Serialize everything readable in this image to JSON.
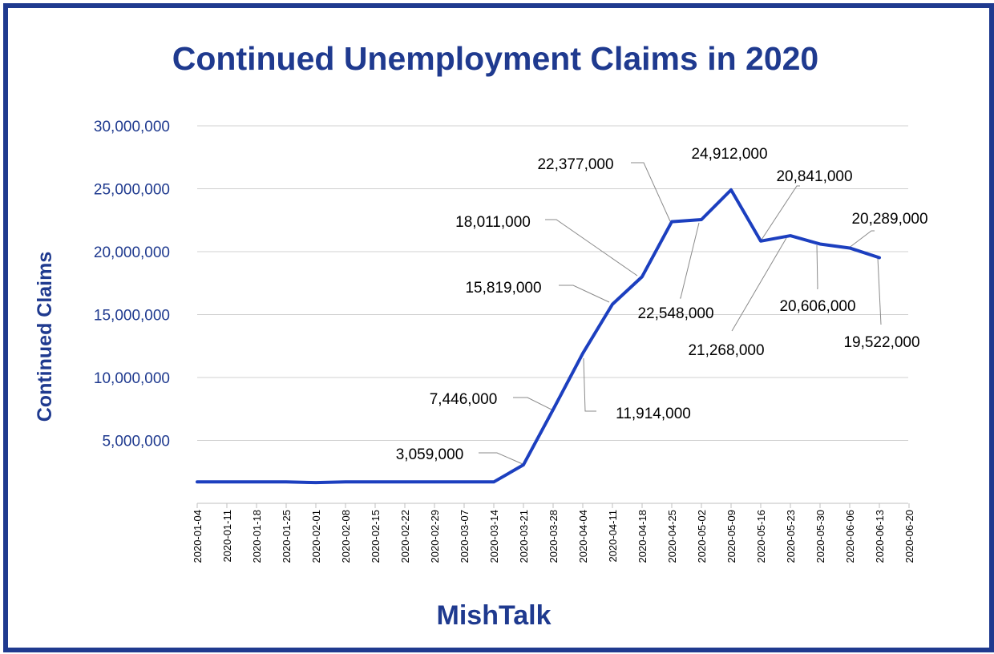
{
  "chart_data": {
    "type": "line",
    "title": "Continued Unemployment Claims in 2020",
    "xlabel": "MishTalk",
    "ylabel": "Continued  Claims",
    "ylim": [
      0,
      30000000
    ],
    "yticks": [
      {
        "value": 5000000,
        "label": "5,000,000"
      },
      {
        "value": 10000000,
        "label": "10,000,000"
      },
      {
        "value": 15000000,
        "label": "15,000,000"
      },
      {
        "value": 20000000,
        "label": "20,000,000"
      },
      {
        "value": 25000000,
        "label": "25,000,000"
      },
      {
        "value": 30000000,
        "label": "30,000,000"
      }
    ],
    "categories": [
      "2020-01-04",
      "2020-01-11",
      "2020-01-18",
      "2020-01-25",
      "2020-02-01",
      "2020-02-08",
      "2020-02-15",
      "2020-02-22",
      "2020-02-29",
      "2020-03-07",
      "2020-03-14",
      "2020-03-21",
      "2020-03-28",
      "2020-04-04",
      "2020-04-11",
      "2020-04-18",
      "2020-04-25",
      "2020-05-02",
      "2020-05-09",
      "2020-05-16",
      "2020-05-23",
      "2020-05-30",
      "2020-06-06",
      "2020-06-13",
      "2020-06-20"
    ],
    "series": [
      {
        "color": "#1c3fbf",
        "values": [
          1700000,
          1700000,
          1700000,
          1700000,
          1650000,
          1700000,
          1700000,
          1700000,
          1700000,
          1700000,
          1700000,
          3059000,
          7446000,
          11914000,
          15819000,
          18011000,
          22377000,
          22548000,
          24912000,
          20841000,
          21268000,
          20606000,
          20289000,
          19522000,
          null
        ]
      }
    ],
    "data_labels": [
      {
        "x": "2020-03-21",
        "text": "3,059,000"
      },
      {
        "x": "2020-03-28",
        "text": "7,446,000"
      },
      {
        "x": "2020-04-04",
        "text": "11,914,000"
      },
      {
        "x": "2020-04-11",
        "text": "15,819,000"
      },
      {
        "x": "2020-04-18",
        "text": "18,011,000"
      },
      {
        "x": "2020-04-25",
        "text": "22,377,000"
      },
      {
        "x": "2020-05-02",
        "text": "22,548,000"
      },
      {
        "x": "2020-05-09",
        "text": "24,912,000"
      },
      {
        "x": "2020-05-16",
        "text": "20,841,000"
      },
      {
        "x": "2020-05-23",
        "text": "21,268,000"
      },
      {
        "x": "2020-05-30",
        "text": "20,606,000"
      },
      {
        "x": "2020-06-06",
        "text": "20,289,000"
      },
      {
        "x": "2020-06-13",
        "text": "19,522,000"
      }
    ],
    "grid": true,
    "legend": "none",
    "colors": {
      "text": "#1f3a8f",
      "line": "#1c3fbf",
      "border": "#1f3a8f"
    }
  }
}
